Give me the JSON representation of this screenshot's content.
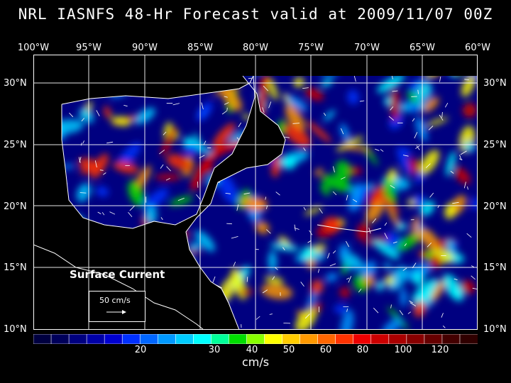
{
  "title": "NRL IASNFS  48-Hr Forecast valid at 2009/11/07 00Z",
  "lon_labels": [
    "100°W",
    "95°W",
    "90°W",
    "85°W",
    "80°W",
    "75°W",
    "70°W",
    "65°W",
    "60°W"
  ],
  "lat_labels": [
    "30°N",
    "25°N",
    "20°N",
    "15°N",
    "10°N"
  ],
  "legend": {
    "label": "Surface Current",
    "scale_text": "50 cm/s"
  },
  "colorbar": {
    "labels": [
      "20",
      "30",
      "40",
      "50",
      "60",
      "80",
      "100",
      "120"
    ],
    "units": "cm/s",
    "colors": [
      "#000040",
      "#00005a",
      "#000080",
      "#0000a8",
      "#0000d0",
      "#0030ff",
      "#0066ff",
      "#0099ff",
      "#00ccff",
      "#00ffff",
      "#00ff99",
      "#00dd00",
      "#88ff00",
      "#ffff00",
      "#ffcc00",
      "#ff9900",
      "#ff6600",
      "#ff3300",
      "#ee0000",
      "#cc0000",
      "#aa0000",
      "#880000",
      "#660000",
      "#440000",
      "#300000"
    ]
  }
}
